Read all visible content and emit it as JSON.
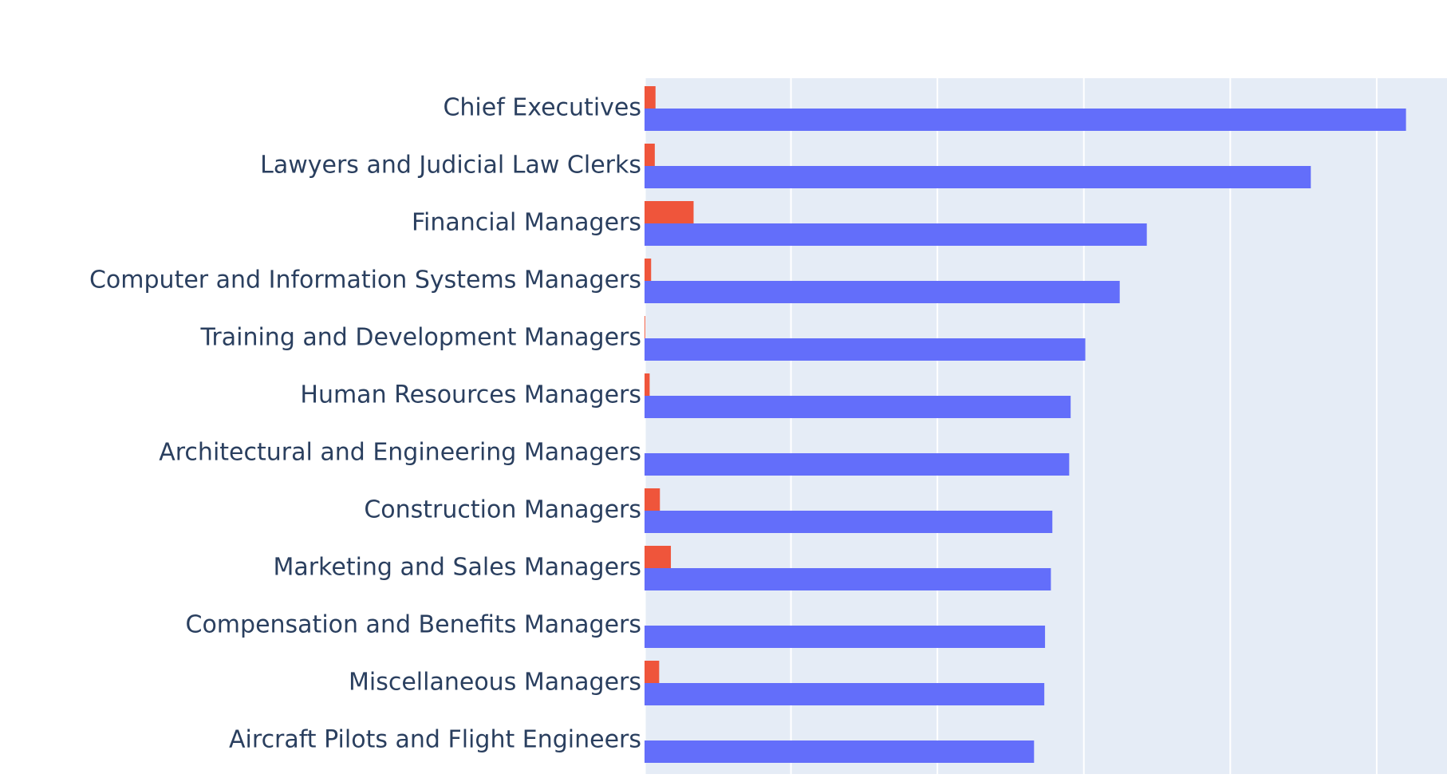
{
  "chart_data": {
    "type": "bar",
    "orientation": "horizontal",
    "categories": [
      "Chief Executives",
      "Lawyers and Judicial Law Clerks",
      "Financial Managers",
      "Computer and Information Systems Managers",
      "Training and Development Managers",
      "Human Resources Managers",
      "Architectural and Engineering Managers",
      "Construction Managers",
      "Marketing and Sales Managers",
      "Compensation and Benefits Managers",
      "Miscellaneous Managers",
      "Aircraft Pilots and Flight Engineers"
    ],
    "series": [
      {
        "color": "#EF553B",
        "values": [
          0.75,
          0.7,
          3.35,
          0.45,
          0.05,
          0.35,
          0.0,
          1.05,
          1.8,
          0.0,
          1.0,
          0.0
        ]
      },
      {
        "color": "#636EFA",
        "values": [
          52.0,
          45.5,
          34.3,
          32.45,
          30.1,
          29.1,
          29.0,
          27.85,
          27.75,
          27.35,
          27.3,
          26.6
        ]
      }
    ],
    "xlim": [
      0,
      54.8
    ],
    "grid": true,
    "x_tick_labels_visible": false,
    "legend": "none",
    "plot_background": "#E5ECF6"
  }
}
